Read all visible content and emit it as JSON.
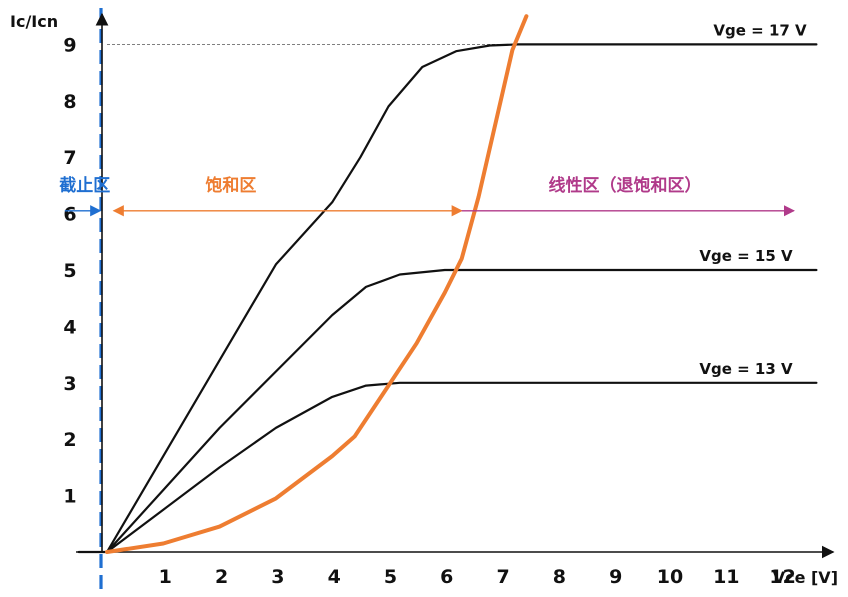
{
  "chart_data": {
    "type": "line",
    "xlabel": "Vce [V]",
    "ylabel": "Ic/Icn",
    "xlim": [
      0,
      12.7
    ],
    "ylim": [
      0,
      9.3
    ],
    "x_ticks": [
      "1",
      "2",
      "3",
      "4",
      "5",
      "6",
      "7",
      "8",
      "9",
      "10",
      "11",
      "12"
    ],
    "y_ticks": [
      "1",
      "2",
      "3",
      "4",
      "5",
      "6",
      "7",
      "8",
      "9"
    ],
    "reference_line": {
      "y": 9,
      "style": "dashed"
    },
    "series": [
      {
        "name": "Vge = 17 V",
        "color": "#111111",
        "points": [
          [
            -0.5,
            0
          ],
          [
            0,
            0
          ],
          [
            1,
            1.7
          ],
          [
            2,
            3.4
          ],
          [
            3,
            5.1
          ],
          [
            4,
            6.2
          ],
          [
            4.5,
            7
          ],
          [
            5,
            7.9
          ],
          [
            5.6,
            8.6
          ],
          [
            6.2,
            8.88
          ],
          [
            6.8,
            8.98
          ],
          [
            7.3,
            9
          ],
          [
            12.6,
            9
          ]
        ]
      },
      {
        "name": "Vge = 15 V",
        "color": "#111111",
        "points": [
          [
            0,
            0
          ],
          [
            1,
            1.1
          ],
          [
            2,
            2.2
          ],
          [
            3,
            3.2
          ],
          [
            4,
            4.2
          ],
          [
            4.6,
            4.7
          ],
          [
            5.2,
            4.92
          ],
          [
            6,
            5
          ],
          [
            12.6,
            5
          ]
        ]
      },
      {
        "name": "Vge = 13 V",
        "color": "#111111",
        "points": [
          [
            0,
            0
          ],
          [
            1,
            0.75
          ],
          [
            2,
            1.5
          ],
          [
            3,
            2.2
          ],
          [
            4,
            2.75
          ],
          [
            4.6,
            2.95
          ],
          [
            5.2,
            3
          ],
          [
            12.6,
            3
          ]
        ]
      },
      {
        "name": "",
        "color": "#ee7d31",
        "points": [
          [
            0,
            0
          ],
          [
            1,
            0.15
          ],
          [
            2,
            0.45
          ],
          [
            3,
            0.95
          ],
          [
            4,
            1.7
          ],
          [
            4.4,
            2.05
          ],
          [
            5,
            2.95
          ],
          [
            5.5,
            3.7
          ],
          [
            6,
            4.6
          ],
          [
            6.3,
            5.2
          ],
          [
            6.6,
            6.3
          ],
          [
            6.9,
            7.6
          ],
          [
            7.2,
            8.9
          ],
          [
            7.45,
            9.5
          ]
        ]
      }
    ],
    "cutoff_line": {
      "x": 0,
      "color": "#1f6fd1"
    },
    "regions": [
      {
        "label": "截止区",
        "color": "#1f6fd1",
        "y": 6.05,
        "x_from": -0.75,
        "x_to": -0.12
      },
      {
        "label": "饱和区",
        "color": "#ee7d31",
        "y": 6.05,
        "x_from": 0.12,
        "x_to": 6.3
      },
      {
        "label": "线性区（退饱和区）",
        "color": "#b03a8a",
        "y": 6.05,
        "x_from": 6.3,
        "x_to": 12.2
      }
    ]
  }
}
